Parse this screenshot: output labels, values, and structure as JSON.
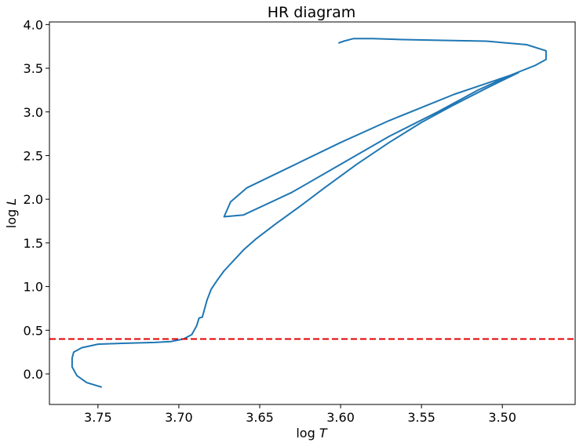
{
  "chart_data": {
    "type": "line",
    "title": "HR diagram",
    "xlabel": {
      "base": "log ",
      "var": "T"
    },
    "ylabel": {
      "base": "log ",
      "var": "L"
    },
    "x_inverted": true,
    "xlim": [
      3.78,
      3.455
    ],
    "ylim": [
      -0.35,
      4.03
    ],
    "x_ticks": [
      3.75,
      3.7,
      3.65,
      3.6,
      3.55,
      3.5
    ],
    "x_tick_labels": [
      "3.75",
      "3.70",
      "3.65",
      "3.60",
      "3.55",
      "3.50"
    ],
    "y_ticks": [
      0.0,
      0.5,
      1.0,
      1.5,
      2.0,
      2.5,
      3.0,
      3.5,
      4.0
    ],
    "y_tick_labels": [
      "0.0",
      "0.5",
      "1.0",
      "1.5",
      "2.0",
      "2.5",
      "3.0",
      "3.5",
      "4.0"
    ],
    "grid": false,
    "line_color": "#1f77b4",
    "series": [
      {
        "x": [
          3.748,
          3.757,
          3.763,
          3.766,
          3.766,
          3.765,
          3.76,
          3.75,
          3.735,
          3.715,
          3.705,
          3.697,
          3.692,
          3.689,
          3.6875,
          3.6855,
          3.684,
          3.6825,
          3.68,
          3.676,
          3.672,
          3.665,
          3.66,
          3.652,
          3.64,
          3.625,
          3.61,
          3.59,
          3.57,
          3.55,
          3.53,
          3.51,
          3.49,
          3.53,
          3.57,
          3.6,
          3.63,
          3.658,
          3.668,
          3.672,
          3.66,
          3.63,
          3.6,
          3.57,
          3.54,
          3.515,
          3.495,
          3.48,
          3.473,
          3.473,
          3.485,
          3.51,
          3.54,
          3.565,
          3.58,
          3.592,
          3.598,
          3.601
        ],
        "y": [
          -0.15,
          -0.1,
          -0.02,
          0.08,
          0.18,
          0.25,
          0.3,
          0.34,
          0.35,
          0.36,
          0.37,
          0.4,
          0.45,
          0.55,
          0.64,
          0.65,
          0.75,
          0.85,
          0.97,
          1.08,
          1.18,
          1.32,
          1.42,
          1.55,
          1.72,
          1.92,
          2.13,
          2.4,
          2.65,
          2.88,
          3.08,
          3.27,
          3.45,
          3.2,
          2.9,
          2.65,
          2.38,
          2.13,
          1.97,
          1.8,
          1.82,
          2.08,
          2.4,
          2.72,
          3.0,
          3.25,
          3.42,
          3.53,
          3.6,
          3.7,
          3.77,
          3.81,
          3.82,
          3.83,
          3.84,
          3.84,
          3.81,
          3.79
        ]
      }
    ],
    "hline": {
      "y": 0.4,
      "color": "#e00000",
      "style": "dashed"
    }
  }
}
